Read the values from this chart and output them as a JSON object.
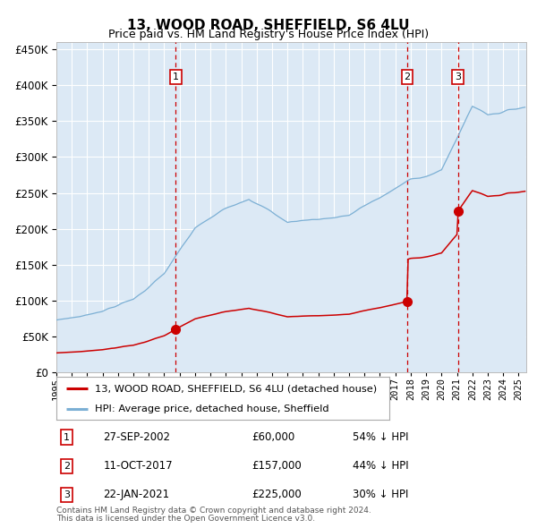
{
  "title": "13, WOOD ROAD, SHEFFIELD, S6 4LU",
  "subtitle": "Price paid vs. HM Land Registry's House Price Index (HPI)",
  "legend_label_red": "13, WOOD ROAD, SHEFFIELD, S6 4LU (detached house)",
  "legend_label_blue": "HPI: Average price, detached house, Sheffield",
  "footer1": "Contains HM Land Registry data © Crown copyright and database right 2024.",
  "footer2": "This data is licensed under the Open Government Licence v3.0.",
  "sales": [
    {
      "num": 1,
      "date": "27-SEP-2002",
      "price": 60000,
      "pct": "54%",
      "x_year": 2002.74
    },
    {
      "num": 2,
      "date": "11-OCT-2017",
      "price": 157000,
      "pct": "44%",
      "x_year": 2017.78
    },
    {
      "num": 3,
      "date": "22-JAN-2021",
      "price": 225000,
      "pct": "30%",
      "x_year": 2021.06
    }
  ],
  "ylim": [
    0,
    460000
  ],
  "xlim_start": 1995.0,
  "xlim_end": 2025.5,
  "background_color": "#dce9f5",
  "red_line_color": "#cc0000",
  "blue_line_color": "#7bafd4",
  "grid_color": "#ffffff",
  "dashed_line_color": "#cc0000",
  "title_fontsize": 11,
  "subtitle_fontsize": 9
}
